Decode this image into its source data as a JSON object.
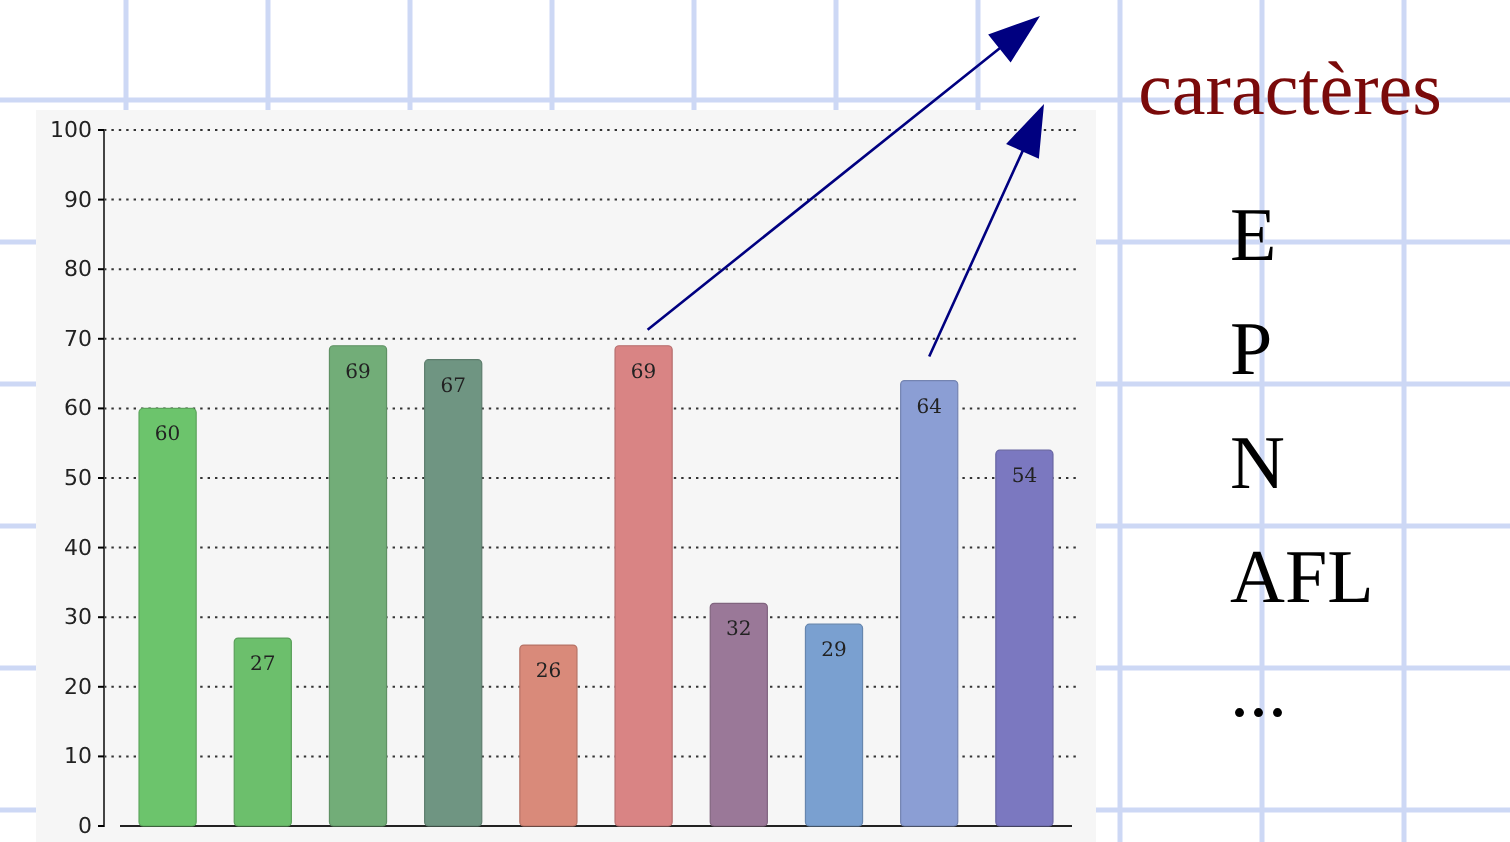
{
  "chart_data": {
    "type": "bar",
    "categories": [
      null,
      null,
      null,
      null,
      null,
      null,
      null,
      null,
      null,
      null
    ],
    "values": [
      60,
      27,
      69,
      67,
      26,
      69,
      32,
      29,
      64,
      54
    ],
    "colors": [
      "#6cc46c",
      "#6cbf6c",
      "#72ad78",
      "#6f9582",
      "#d98a7a",
      "#d98484",
      "#9a7898",
      "#7aa0d0",
      "#8b9ed4",
      "#7b78c0"
    ],
    "ylim": [
      0,
      100
    ],
    "yticks": [
      0,
      10,
      20,
      30,
      40,
      50,
      60,
      70,
      80,
      90,
      100
    ],
    "grid": "y",
    "data_labels": true,
    "annotations": [
      "caractères",
      "E",
      "P",
      "N",
      "AFL",
      "..."
    ]
  }
}
